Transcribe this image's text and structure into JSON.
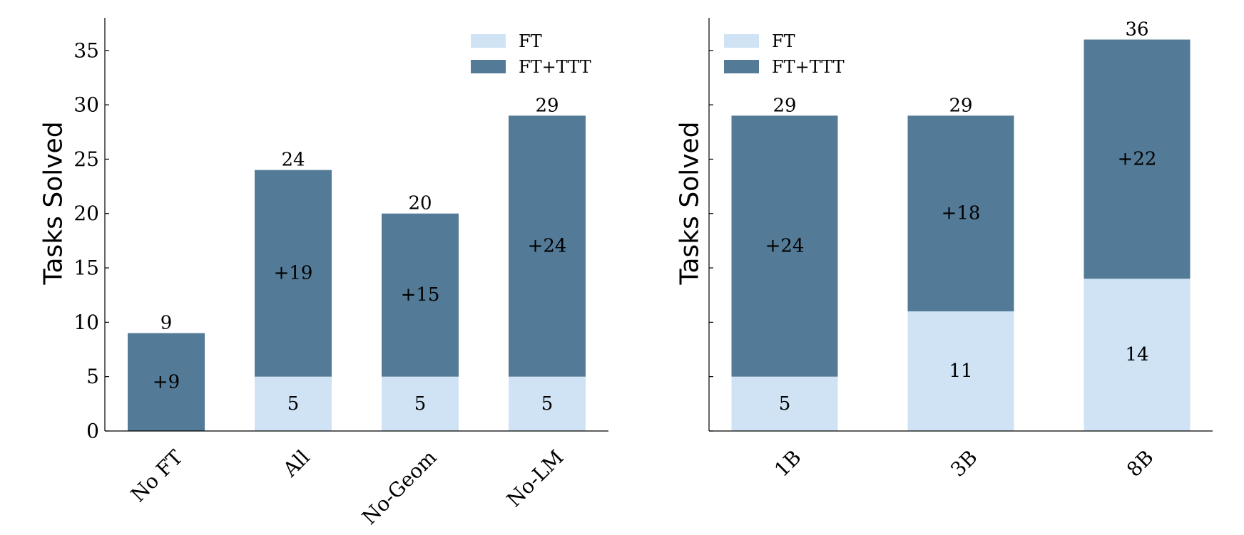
{
  "colors": {
    "ft": "#cfe3f5",
    "ft_ttt": "#537a96",
    "axis": "#000000"
  },
  "chart_data": [
    {
      "type": "bar",
      "stacked": true,
      "title": "",
      "xlabel": "",
      "ylabel": "Tasks Solved",
      "ylim": [
        0,
        38
      ],
      "yticks": [
        0,
        5,
        10,
        15,
        20,
        25,
        30,
        35
      ],
      "categories": [
        "No FT",
        "All",
        "No-Geom",
        "No-LM"
      ],
      "series": [
        {
          "name": "FT",
          "values": [
            0,
            5,
            5,
            5
          ]
        },
        {
          "name": "FT+TTT",
          "values": [
            9,
            19,
            15,
            24
          ]
        }
      ],
      "segment_labels": {
        "FT": [
          "",
          "5",
          "5",
          "5"
        ],
        "FT+TTT": [
          "+9",
          "+19",
          "+15",
          "+24"
        ]
      },
      "total_labels": [
        "9",
        "24",
        "20",
        "29"
      ],
      "legend_position": "top-right",
      "grid": false
    },
    {
      "type": "bar",
      "stacked": true,
      "title": "",
      "xlabel": "",
      "ylabel": "Tasks Solved",
      "ylim": [
        0,
        38
      ],
      "yticks": [
        0,
        5,
        10,
        15,
        20,
        25,
        30,
        35
      ],
      "categories": [
        "1B",
        "3B",
        "8B"
      ],
      "series": [
        {
          "name": "FT",
          "values": [
            5,
            11,
            14
          ]
        },
        {
          "name": "FT+TTT",
          "values": [
            24,
            18,
            22
          ]
        }
      ],
      "segment_labels": {
        "FT": [
          "5",
          "11",
          "14"
        ],
        "FT+TTT": [
          "+24",
          "+18",
          "+22"
        ]
      },
      "total_labels": [
        "29",
        "29",
        "36"
      ],
      "legend_position": "top-left",
      "grid": false
    }
  ]
}
